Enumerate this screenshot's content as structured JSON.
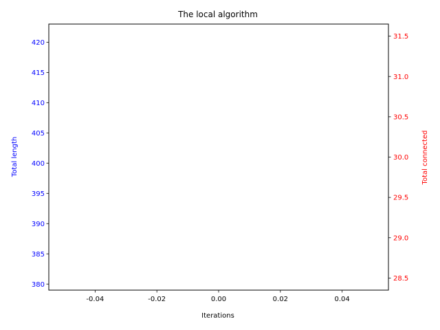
{
  "chart_data": {
    "type": "line",
    "title": "The local algorithm",
    "xlabel": "Iterations",
    "ylabel": "Total length",
    "y2label": "Total connected",
    "xlim": [
      -0.055,
      0.055
    ],
    "ylim": [
      379,
      423
    ],
    "y2lim": [
      28.35,
      31.65
    ],
    "x_ticks": [
      "-0.04",
      "-0.02",
      "0.00",
      "0.02",
      "0.04"
    ],
    "y_ticks": [
      "380",
      "385",
      "390",
      "395",
      "400",
      "405",
      "410",
      "415",
      "420"
    ],
    "y2_ticks": [
      "28.5",
      "29.0",
      "29.5",
      "30.0",
      "30.5",
      "31.0",
      "31.5"
    ],
    "series": [
      {
        "name": "Total length",
        "axis": "left",
        "color": "#0000ff",
        "x": [],
        "y": []
      },
      {
        "name": "Total connected",
        "axis": "right",
        "color": "#ff0000",
        "x": [],
        "y": []
      }
    ],
    "colors": {
      "left_axis": "#0000ff",
      "right_axis": "#ff0000",
      "frame": "#000000"
    },
    "grid": false
  }
}
